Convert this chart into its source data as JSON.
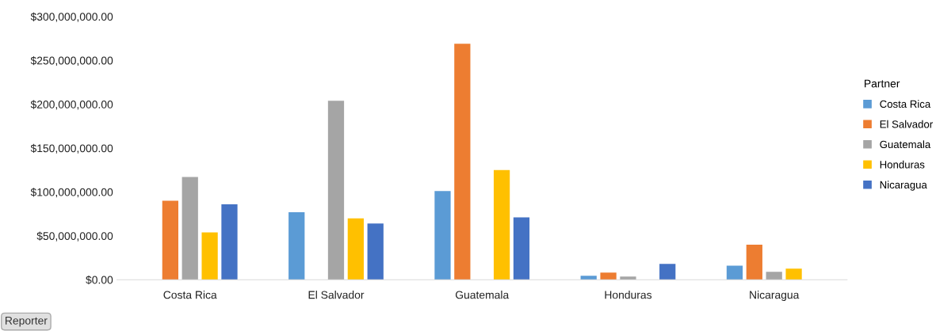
{
  "chart_data": {
    "type": "bar",
    "categories": [
      "Costa Rica",
      "El Salvador",
      "Guatemala",
      "Honduras",
      "Nicaragua"
    ],
    "series": [
      {
        "name": "Costa Rica",
        "color": "#5b9bd5",
        "values": [
          null,
          77000000,
          101000000,
          4500000,
          16000000
        ]
      },
      {
        "name": "El Salvador",
        "color": "#ed7d31",
        "values": [
          90000000,
          null,
          269000000,
          8000000,
          40000000
        ]
      },
      {
        "name": "Guatemala",
        "color": "#a5a5a5",
        "values": [
          117000000,
          204000000,
          null,
          3500000,
          9000000
        ]
      },
      {
        "name": "Honduras",
        "color": "#ffc000",
        "values": [
          54000000,
          70000000,
          125000000,
          null,
          12500000
        ]
      },
      {
        "name": "Nicaragua",
        "color": "#4472c4",
        "values": [
          86000000,
          64000000,
          71000000,
          18000000,
          null
        ]
      }
    ],
    "ylim": [
      0,
      300000000
    ],
    "yticks": [
      {
        "value": 0,
        "label": "$0.00"
      },
      {
        "value": 50000000,
        "label": "$50,000,000.00"
      },
      {
        "value": 100000000,
        "label": "$100,000,000.00"
      },
      {
        "value": 150000000,
        "label": "$150,000,000.00"
      },
      {
        "value": 200000000,
        "label": "$200,000,000.00"
      },
      {
        "value": 250000000,
        "label": "$250,000,000.00"
      },
      {
        "value": 300000000,
        "label": "$300,000,000.00"
      }
    ],
    "legend_title": "Partner",
    "annotations": [
      "Reporter"
    ],
    "legend": "right",
    "grid": false
  }
}
